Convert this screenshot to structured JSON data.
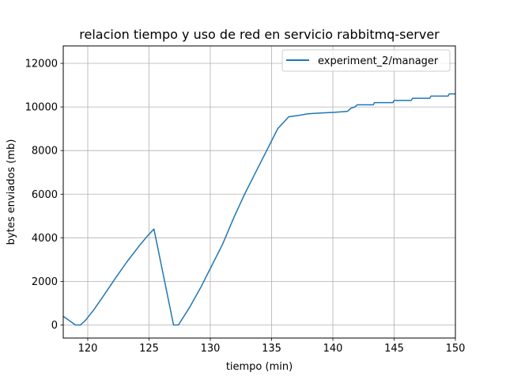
{
  "chart_data": {
    "type": "line",
    "title": "relacion tiempo y uso de red en servicio rabbitmq-server",
    "xlabel": "tiempo (min)",
    "ylabel": "bytes enviados (mb)",
    "xlim": [
      118,
      150
    ],
    "ylim": [
      -600,
      12800
    ],
    "xticks": [
      120,
      125,
      130,
      135,
      140,
      145,
      150
    ],
    "yticks": [
      0,
      2000,
      4000,
      6000,
      8000,
      10000,
      12000
    ],
    "grid": true,
    "legend_position": "top-right",
    "line_color": "#1f77b4",
    "series": [
      {
        "name": "experiment_2/manager",
        "x": [
          118,
          118.5,
          119,
          119.4,
          119.8,
          120.5,
          121.3,
          122.2,
          123.2,
          124.3,
          124.9,
          125.4,
          127.0,
          127.4,
          128.3,
          129.2,
          130.1,
          131.0,
          131.9,
          132.8,
          133.7,
          134.6,
          135.5,
          136.4,
          137.3,
          137.9,
          138.3,
          139.0,
          140.0,
          140.8,
          141.2,
          141.5,
          141.8,
          142.0,
          143.3,
          143.4,
          144.9,
          145.0,
          146.4,
          146.5,
          147.9,
          148.0,
          149.4,
          149.5,
          150
        ],
        "values": [
          400,
          200,
          0,
          0,
          200,
          700,
          1350,
          2100,
          2900,
          3700,
          4100,
          4400,
          0,
          0,
          800,
          1700,
          2700,
          3700,
          4900,
          6000,
          7000,
          8000,
          9000,
          9550,
          9620,
          9680,
          9700,
          9720,
          9750,
          9780,
          9800,
          9950,
          10000,
          10100,
          10100,
          10200,
          10200,
          10300,
          10300,
          10400,
          10400,
          10500,
          10500,
          10600,
          10600
        ]
      }
    ]
  }
}
